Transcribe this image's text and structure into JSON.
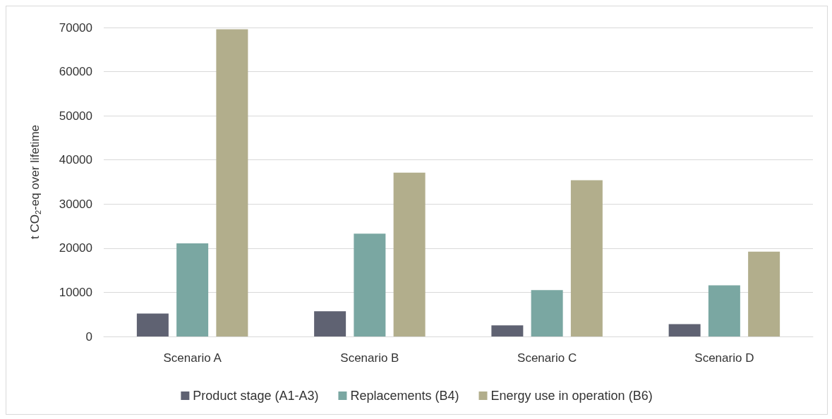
{
  "chart_data": {
    "type": "bar",
    "ylabel": "t CO$_{2}$-eq over lifetime",
    "categories": [
      "Scenario A",
      "Scenario B",
      "Scenario C",
      "Scenario D"
    ],
    "series": [
      {
        "name": "Product stage (A1-A3)",
        "color": "#5f6272",
        "values": [
          5200,
          5700,
          2500,
          2800
        ]
      },
      {
        "name": "Replacements (B4)",
        "color": "#7aa7a2",
        "values": [
          21100,
          23300,
          10500,
          11600
        ]
      },
      {
        "name": "Energy use in operation (B6)",
        "color": "#b2ae8c",
        "values": [
          69600,
          37100,
          35400,
          19200
        ]
      }
    ],
    "ylim": [
      0,
      70000
    ],
    "yticks": [
      0,
      10000,
      20000,
      30000,
      40000,
      50000,
      60000,
      70000
    ],
    "grid": "y",
    "legend": "bottom"
  }
}
